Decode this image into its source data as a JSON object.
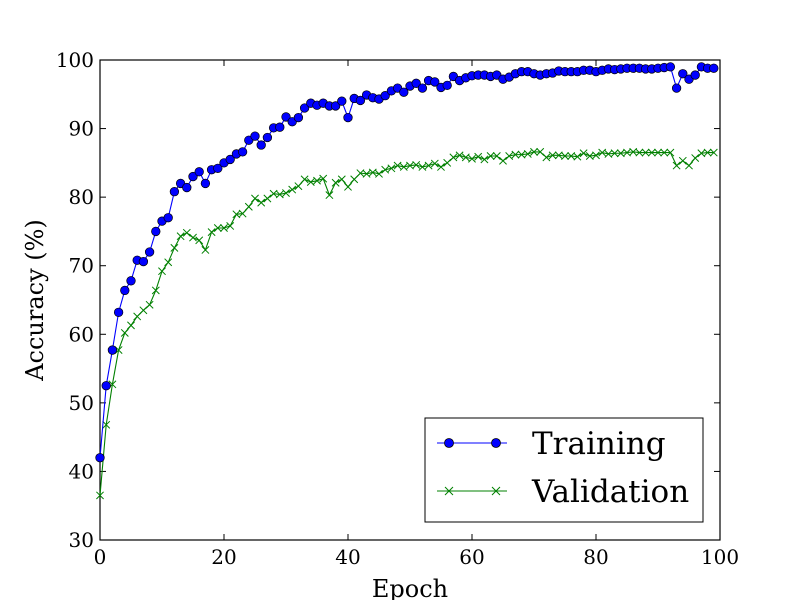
{
  "chart_data": {
    "type": "line",
    "xlabel": "Epoch",
    "ylabel": "Accuracy (%)",
    "xlim": [
      0,
      100
    ],
    "ylim": [
      30,
      100
    ],
    "xticks": [
      0,
      20,
      40,
      60,
      80,
      100
    ],
    "yticks": [
      30,
      40,
      50,
      60,
      70,
      80,
      90,
      100
    ],
    "grid": false,
    "legend_position": "bottom-right",
    "series": [
      {
        "name": "Training",
        "color": "#0000ff",
        "marker": "circle",
        "x": [
          0,
          1,
          2,
          3,
          4,
          5,
          6,
          7,
          8,
          9,
          10,
          11,
          12,
          13,
          14,
          15,
          16,
          17,
          18,
          19,
          20,
          21,
          22,
          23,
          24,
          25,
          26,
          27,
          28,
          29,
          30,
          31,
          32,
          33,
          34,
          35,
          36,
          37,
          38,
          39,
          40,
          41,
          42,
          43,
          44,
          45,
          46,
          47,
          48,
          49,
          50,
          51,
          52,
          53,
          54,
          55,
          56,
          57,
          58,
          59,
          60,
          61,
          62,
          63,
          64,
          65,
          66,
          67,
          68,
          69,
          70,
          71,
          72,
          73,
          74,
          75,
          76,
          77,
          78,
          79,
          80,
          81,
          82,
          83,
          84,
          85,
          86,
          87,
          88,
          89,
          90,
          91,
          92,
          93,
          94,
          95,
          96,
          97,
          98,
          99
        ],
        "values": [
          42,
          52.5,
          57.7,
          63.2,
          66.4,
          67.8,
          70.8,
          70.6,
          72,
          75,
          76.5,
          77,
          80.8,
          82,
          81.4,
          83,
          83.7,
          82,
          84,
          84.2,
          85,
          85.5,
          86.3,
          86.6,
          88.3,
          88.9,
          87.6,
          88.7,
          90.1,
          90.2,
          91.7,
          91,
          91.6,
          93,
          93.7,
          93.4,
          93.7,
          93.3,
          93.3,
          94,
          91.6,
          94.4,
          94.1,
          94.9,
          94.5,
          94.3,
          94.8,
          95.5,
          95.9,
          95.3,
          96.2,
          96.6,
          95.9,
          97,
          96.8,
          96,
          96.3,
          97.6,
          97,
          97.4,
          97.7,
          97.8,
          97.8,
          97.6,
          97.8,
          97.2,
          97.5,
          98,
          98.3,
          98.3,
          98,
          97.8,
          98,
          98.1,
          98.4,
          98.3,
          98.3,
          98.3,
          98.5,
          98.5,
          98.3,
          98.5,
          98.7,
          98.6,
          98.7,
          98.8,
          98.8,
          98.8,
          98.7,
          98.7,
          98.8,
          98.9,
          99,
          95.9,
          98,
          97.2,
          97.8,
          99,
          98.8,
          98.8
        ]
      },
      {
        "name": "Validation",
        "color": "#008000",
        "marker": "x",
        "x": [
          0,
          1,
          2,
          3,
          4,
          5,
          6,
          7,
          8,
          9,
          10,
          11,
          12,
          13,
          14,
          15,
          16,
          17,
          18,
          19,
          20,
          21,
          22,
          23,
          24,
          25,
          26,
          27,
          28,
          29,
          30,
          31,
          32,
          33,
          34,
          35,
          36,
          37,
          38,
          39,
          40,
          41,
          42,
          43,
          44,
          45,
          46,
          47,
          48,
          49,
          50,
          51,
          52,
          53,
          54,
          55,
          56,
          57,
          58,
          59,
          60,
          61,
          62,
          63,
          64,
          65,
          66,
          67,
          68,
          69,
          70,
          71,
          72,
          73,
          74,
          75,
          76,
          77,
          78,
          79,
          80,
          81,
          82,
          83,
          84,
          85,
          86,
          87,
          88,
          89,
          90,
          91,
          92,
          93,
          94,
          95,
          96,
          97,
          98,
          99
        ],
        "values": [
          36.5,
          46.8,
          52.7,
          57.7,
          60.2,
          61.3,
          62.6,
          63.5,
          64.3,
          66.4,
          69.2,
          70.5,
          72.6,
          74.3,
          74.8,
          74.1,
          73.7,
          72.3,
          74.9,
          75.5,
          75.5,
          75.8,
          77.5,
          77.6,
          78.6,
          79.8,
          79.2,
          79.8,
          80.5,
          80.4,
          80.6,
          81.1,
          81.6,
          82.6,
          82.2,
          82.4,
          82.7,
          80.3,
          82.1,
          82.6,
          81.5,
          82.6,
          83.5,
          83.4,
          83.6,
          83.4,
          84,
          84.2,
          84.6,
          84.4,
          84.6,
          84.7,
          84.4,
          84.6,
          84.9,
          84.4,
          85,
          85.8,
          86.1,
          85.8,
          85.6,
          85.9,
          85.5,
          86,
          86,
          85.3,
          86,
          86.2,
          86.2,
          86.3,
          86.6,
          86.6,
          85.8,
          86.1,
          86.1,
          86,
          86,
          85.9,
          86.4,
          86,
          86.1,
          86.5,
          86.3,
          86.4,
          86.4,
          86.5,
          86.6,
          86.5,
          86.5,
          86.5,
          86.5,
          86.5,
          86.5,
          84.6,
          85.3,
          84.6,
          85.7,
          86.4,
          86.5,
          86.5
        ]
      }
    ]
  }
}
